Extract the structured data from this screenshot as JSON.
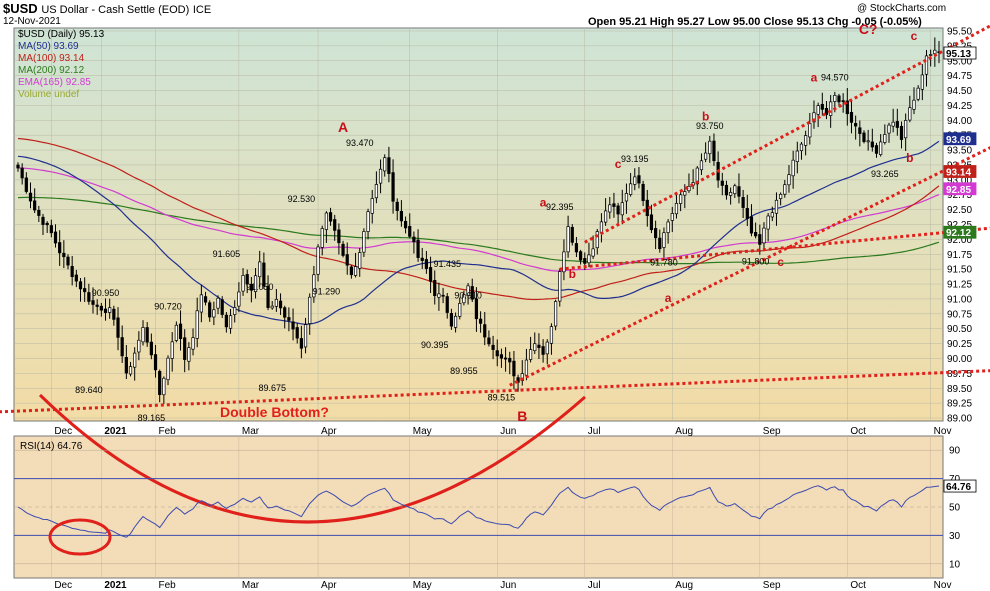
{
  "header": {
    "symbol": "$USD",
    "name": "US Dollar - Cash Settle (EOD)",
    "exchange": "ICE",
    "date": "12-Nov-2021",
    "copyright": "@ StockCharts.com",
    "ohlc": "Open 95.21  High 95.27  Low 95.00  Close 95.13  Chg -0.05 (-0.05%)"
  },
  "legend": [
    {
      "label": "$USD (Daily) 95.13",
      "color": "#000000"
    },
    {
      "label": "MA(50) 93.69",
      "color": "#1f2f8f"
    },
    {
      "label": "MA(100) 93.14",
      "color": "#c0201a"
    },
    {
      "label": "MA(200) 92.12",
      "color": "#2d7a1e"
    },
    {
      "label": "EMA(165) 92.85",
      "color": "#d23ad2"
    },
    {
      "label": "Volume undef",
      "color": "#9aa830"
    }
  ],
  "rsi_label": "RSI(14) 64.76",
  "chart_data": [
    {
      "type": "candlestick",
      "x_ticks": [
        "Dec",
        "2021",
        "Feb",
        "Mar",
        "Apr",
        "May",
        "Jun",
        "Jul",
        "Aug",
        "Sep",
        "Oct",
        "Nov"
      ],
      "y_ticks": [
        "95.50",
        "95.25",
        "95.00",
        "94.75",
        "94.50",
        "94.25",
        "94.00",
        "93.75",
        "93.50",
        "93.25",
        "93.00",
        "92.75",
        "92.50",
        "92.25",
        "92.00",
        "91.75",
        "91.50",
        "91.25",
        "91.00",
        "90.75",
        "90.50",
        "90.25",
        "90.00",
        "89.75",
        "89.50",
        "89.25",
        "89.00"
      ],
      "ylim": [
        88.95,
        95.55
      ],
      "close_path": [
        [
          0,
          93.2
        ],
        [
          4,
          92.5
        ],
        [
          8,
          92.1
        ],
        [
          10,
          91.8
        ],
        [
          14,
          91.3
        ],
        [
          18,
          90.9
        ],
        [
          22,
          90.8
        ],
        [
          24,
          90.4
        ],
        [
          26,
          89.7
        ],
        [
          30,
          90.5
        ],
        [
          32,
          90.1
        ],
        [
          34,
          89.4
        ],
        [
          38,
          90.6
        ],
        [
          40,
          90.0
        ],
        [
          42,
          90.4
        ],
        [
          44,
          91.1
        ],
        [
          46,
          90.7
        ],
        [
          48,
          91.0
        ],
        [
          50,
          90.5
        ],
        [
          52,
          90.9
        ],
        [
          54,
          91.4
        ],
        [
          56,
          91.2
        ],
        [
          58,
          91.6
        ],
        [
          60,
          90.8
        ],
        [
          62,
          91.0
        ],
        [
          64,
          90.7
        ],
        [
          66,
          90.5
        ],
        [
          68,
          90.2
        ],
        [
          70,
          91.0
        ],
        [
          72,
          91.9
        ],
        [
          74,
          92.4
        ],
        [
          76,
          92.1
        ],
        [
          78,
          91.7
        ],
        [
          80,
          91.4
        ],
        [
          82,
          91.8
        ],
        [
          84,
          92.5
        ],
        [
          86,
          92.9
        ],
        [
          88,
          93.4
        ],
        [
          90,
          92.7
        ],
        [
          92,
          92.3
        ],
        [
          94,
          92.1
        ],
        [
          96,
          91.7
        ],
        [
          98,
          91.5
        ],
        [
          100,
          91.1
        ],
        [
          102,
          91.0
        ],
        [
          104,
          90.6
        ],
        [
          106,
          90.9
        ],
        [
          108,
          91.2
        ],
        [
          110,
          90.7
        ],
        [
          112,
          90.4
        ],
        [
          114,
          90.2
        ],
        [
          116,
          90.0
        ],
        [
          118,
          89.9
        ],
        [
          120,
          89.6
        ],
        [
          122,
          90.0
        ],
        [
          124,
          90.3
        ],
        [
          126,
          90.1
        ],
        [
          128,
          90.5
        ],
        [
          130,
          91.5
        ],
        [
          132,
          92.2
        ],
        [
          134,
          91.8
        ],
        [
          136,
          91.6
        ],
        [
          138,
          91.9
        ],
        [
          140,
          92.3
        ],
        [
          142,
          92.6
        ],
        [
          144,
          92.4
        ],
        [
          146,
          92.8
        ],
        [
          148,
          93.1
        ],
        [
          150,
          92.7
        ],
        [
          152,
          92.2
        ],
        [
          154,
          91.9
        ],
        [
          156,
          92.3
        ],
        [
          158,
          92.6
        ],
        [
          160,
          92.8
        ],
        [
          162,
          93.0
        ],
        [
          164,
          93.3
        ],
        [
          166,
          93.6
        ],
        [
          168,
          93.0
        ],
        [
          170,
          92.7
        ],
        [
          172,
          92.9
        ],
        [
          174,
          92.5
        ],
        [
          176,
          92.1
        ],
        [
          178,
          91.9
        ],
        [
          180,
          92.4
        ],
        [
          182,
          92.6
        ],
        [
          184,
          92.9
        ],
        [
          186,
          93.3
        ],
        [
          188,
          93.6
        ],
        [
          190,
          93.9
        ],
        [
          192,
          94.3
        ],
        [
          194,
          94.1
        ],
        [
          196,
          94.4
        ],
        [
          198,
          94.3
        ],
        [
          200,
          94.0
        ],
        [
          202,
          93.8
        ],
        [
          204,
          93.6
        ],
        [
          206,
          93.5
        ],
        [
          208,
          93.8
        ],
        [
          210,
          94.0
        ],
        [
          212,
          93.7
        ],
        [
          214,
          94.2
        ],
        [
          216,
          94.5
        ],
        [
          218,
          95.1
        ],
        [
          220,
          95.13
        ]
      ],
      "n_bars": 222
    },
    {
      "type": "line",
      "name": "RSI(14)",
      "ylim": [
        0,
        100
      ],
      "y_ticks": [
        90,
        70,
        50,
        30,
        10
      ],
      "last": 64.76
    }
  ],
  "annotations": {
    "price_labels": [
      {
        "text": "89.640",
        "i": 17,
        "v": 89.64,
        "pos": "below"
      },
      {
        "text": "90.950",
        "i": 21,
        "v": 90.95,
        "pos": "above"
      },
      {
        "text": "89.165",
        "i": 32,
        "v": 89.165,
        "pos": "below"
      },
      {
        "text": "90.720",
        "i": 36,
        "v": 90.72,
        "pos": "above"
      },
      {
        "text": "91.605",
        "i": 50,
        "v": 91.605,
        "pos": "above"
      },
      {
        "text": "91.050",
        "i": 58,
        "v": 91.05,
        "pos": "above"
      },
      {
        "text": "89.675",
        "i": 61,
        "v": 89.675,
        "pos": "below"
      },
      {
        "text": "92.530",
        "i": 68,
        "v": 92.53,
        "pos": "above"
      },
      {
        "text": "91.290",
        "i": 74,
        "v": 91.29,
        "pos": "below"
      },
      {
        "text": "93.470",
        "i": 82,
        "v": 93.47,
        "pos": "above"
      },
      {
        "text": "91.435",
        "i": 103,
        "v": 91.435,
        "pos": "above"
      },
      {
        "text": "90.910",
        "i": 108,
        "v": 90.91,
        "pos": "above"
      },
      {
        "text": "90.395",
        "i": 100,
        "v": 90.395,
        "pos": "below"
      },
      {
        "text": "89.955",
        "i": 107,
        "v": 89.955,
        "pos": "below"
      },
      {
        "text": "89.515",
        "i": 116,
        "v": 89.515,
        "pos": "below"
      },
      {
        "text": "92.395",
        "i": 130,
        "v": 92.395,
        "pos": "above"
      },
      {
        "text": "93.195",
        "i": 148,
        "v": 93.195,
        "pos": "above"
      },
      {
        "text": "91.780",
        "i": 155,
        "v": 91.78,
        "pos": "below"
      },
      {
        "text": "93.750",
        "i": 166,
        "v": 93.75,
        "pos": "above"
      },
      {
        "text": "91.800",
        "i": 177,
        "v": 91.8,
        "pos": "below"
      },
      {
        "text": "94.570",
        "i": 196,
        "v": 94.57,
        "pos": "above"
      },
      {
        "text": "93.265",
        "i": 208,
        "v": 93.265,
        "pos": "below"
      }
    ],
    "wave_labels": [
      {
        "text": "A",
        "i": 78,
        "v": 93.8
      },
      {
        "text": "B",
        "i": 121,
        "v": 88.95
      },
      {
        "text": "a",
        "i": 126,
        "v": 92.55
      },
      {
        "text": "b",
        "i": 133,
        "v": 91.35
      },
      {
        "text": "c",
        "i": 144,
        "v": 93.2
      },
      {
        "text": "a",
        "i": 156,
        "v": 90.95
      },
      {
        "text": "b",
        "i": 165,
        "v": 94.0
      },
      {
        "text": "c",
        "i": 183,
        "v": 91.55
      },
      {
        "text": "a",
        "i": 191,
        "v": 94.65
      },
      {
        "text": "C?",
        "i": 204,
        "v": 95.45
      },
      {
        "text": "c",
        "i": 215,
        "v": 95.35
      },
      {
        "text": "b",
        "i": 214,
        "v": 93.3
      }
    ],
    "double_bottom": "Double Bottom?",
    "last_price_tags": [
      {
        "text": "95.13",
        "v": 95.13,
        "bg": "#ffffff",
        "fg": "#000000"
      },
      {
        "text": "93.69",
        "v": 93.69,
        "bg": "#1f2f8f",
        "fg": "#ffffff"
      },
      {
        "text": "93.14",
        "v": 93.14,
        "bg": "#c0201a",
        "fg": "#ffffff"
      },
      {
        "text": "92.85",
        "v": 92.85,
        "bg": "#d23ad2",
        "fg": "#ffffff"
      },
      {
        "text": "92.12",
        "v": 92.12,
        "bg": "#2d7a1e",
        "fg": "#ffffff"
      }
    ],
    "rsi_tag": "64.76"
  },
  "colors": {
    "ma50": "#1f2f8f",
    "ma100": "#c0201a",
    "ma200": "#2d7a1e",
    "ema165": "#d23ad2",
    "trend": "#e0201a",
    "rsi_line": "#3b4bb0",
    "price_bg_top": "#cfe4d6",
    "price_bg_bottom": "#f3dca6",
    "rsi_bg": "#f3dcb8"
  }
}
